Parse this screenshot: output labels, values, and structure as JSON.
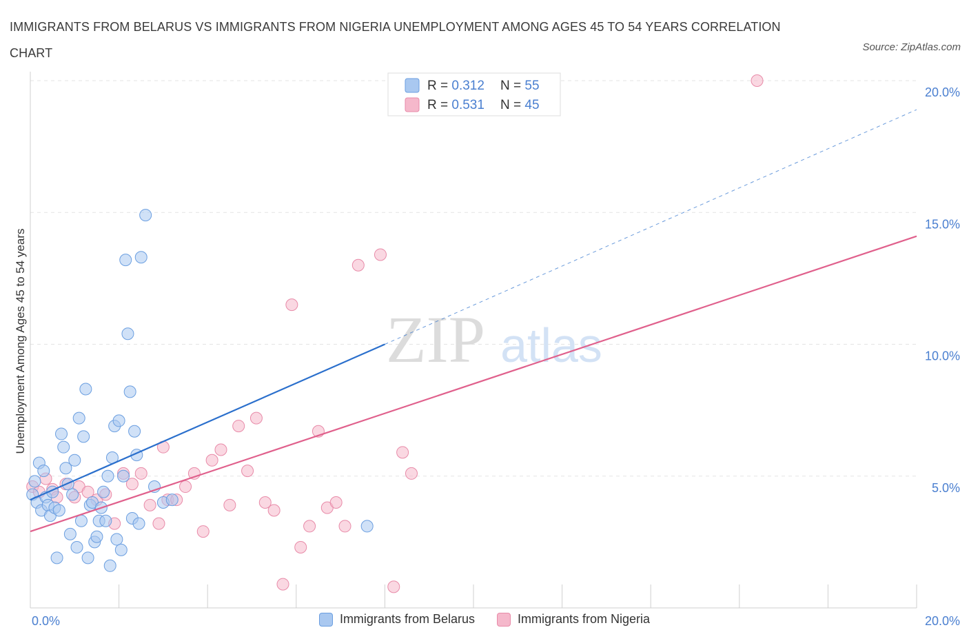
{
  "title": "IMMIGRANTS FROM BELARUS VS IMMIGRANTS FROM NIGERIA UNEMPLOYMENT AMONG AGES 45 TO 54 YEARS CORRELATION CHART",
  "source": "Source: ZipAtlas.com",
  "watermark": {
    "zip": "ZIP",
    "atlas": "atlas"
  },
  "colors": {
    "blue": "#a9c8f0",
    "blue_stroke": "#6a9ee0",
    "blue_line": "#2a6fcc",
    "pink": "#f5b8cb",
    "pink_stroke": "#e88aa8",
    "pink_line": "#e0608c",
    "axis_text": "#4a7fd0"
  },
  "legend_top": [
    {
      "r_label": "R = ",
      "r_value": "0.312",
      "n_label": "N = ",
      "n_value": "55"
    },
    {
      "r_label": "R = ",
      "r_value": "0.531",
      "n_label": "N = ",
      "n_value": "45"
    }
  ],
  "chart_data": {
    "type": "scatter",
    "title": "IMMIGRANTS FROM BELARUS VS IMMIGRANTS FROM NIGERIA UNEMPLOYMENT AMONG AGES 45 TO 54 YEARS CORRELATION CHART",
    "xlabel": "",
    "ylabel": "Unemployment Among Ages 45 to 54 years",
    "xlim": [
      0,
      20
    ],
    "ylim": [
      0,
      20
    ],
    "x_tick_labels": [
      "0.0%",
      "20.0%"
    ],
    "y_ticks": [
      {
        "value": 5,
        "label": "5.0%"
      },
      {
        "value": 10,
        "label": "10.0%"
      },
      {
        "value": 15,
        "label": "15.0%"
      },
      {
        "value": 20,
        "label": "20.0%"
      }
    ],
    "grid": true,
    "legend_position": "bottom",
    "series": [
      {
        "name": "Immigrants from Belarus",
        "color": "#a9c8f0",
        "R": 0.312,
        "N": 55,
        "trend": {
          "x0": 0,
          "y0": 4.1,
          "x1": 8.0,
          "y1": 10.0,
          "dash_x1": 20,
          "dash_y1": 18.9
        },
        "x": [
          0.05,
          0.1,
          0.15,
          0.2,
          0.25,
          0.3,
          0.35,
          0.4,
          0.45,
          0.5,
          0.55,
          0.6,
          0.65,
          0.7,
          0.75,
          0.8,
          0.85,
          0.9,
          0.95,
          1.0,
          1.05,
          1.1,
          1.15,
          1.2,
          1.25,
          1.3,
          1.35,
          1.4,
          1.45,
          1.5,
          1.55,
          1.6,
          1.65,
          1.7,
          1.75,
          1.8,
          1.85,
          1.9,
          1.95,
          2.0,
          2.05,
          2.1,
          2.15,
          2.2,
          2.25,
          2.3,
          2.35,
          2.4,
          2.45,
          2.5,
          2.6,
          2.8,
          3.0,
          3.2,
          7.6
        ],
        "y": [
          4.3,
          4.8,
          4.0,
          5.5,
          3.7,
          5.2,
          4.2,
          3.9,
          3.5,
          4.4,
          3.8,
          1.9,
          3.7,
          6.6,
          6.1,
          5.3,
          4.7,
          2.8,
          4.3,
          5.6,
          2.3,
          7.2,
          3.3,
          6.5,
          8.3,
          1.9,
          3.9,
          4.0,
          2.5,
          2.7,
          3.3,
          3.8,
          4.4,
          3.3,
          5.0,
          1.6,
          5.7,
          6.9,
          2.6,
          7.1,
          2.2,
          5.0,
          13.2,
          10.4,
          8.2,
          3.4,
          6.7,
          5.8,
          3.2,
          13.3,
          14.9,
          4.6,
          4.0,
          4.1,
          3.1
        ]
      },
      {
        "name": "Immigrants from Nigeria",
        "color": "#f5b8cb",
        "R": 0.531,
        "N": 45,
        "trend": {
          "x0": 0,
          "y0": 2.9,
          "x1": 20,
          "y1": 14.1
        },
        "x": [
          0.05,
          0.2,
          0.35,
          0.5,
          0.6,
          0.8,
          1.0,
          1.1,
          1.3,
          1.5,
          1.7,
          1.9,
          2.1,
          2.3,
          2.5,
          2.7,
          2.9,
          3.0,
          3.1,
          3.3,
          3.5,
          3.7,
          3.9,
          4.1,
          4.3,
          4.5,
          4.7,
          4.9,
          5.1,
          5.3,
          5.5,
          5.7,
          5.9,
          6.1,
          6.3,
          6.5,
          6.7,
          6.9,
          7.1,
          7.4,
          7.9,
          8.2,
          8.4,
          8.6,
          16.4
        ],
        "y": [
          4.6,
          4.4,
          4.9,
          4.5,
          4.2,
          4.7,
          4.2,
          4.6,
          4.4,
          4.1,
          4.3,
          3.2,
          5.1,
          4.7,
          5.1,
          3.9,
          3.2,
          6.1,
          4.1,
          4.1,
          4.6,
          5.1,
          2.9,
          5.6,
          6.0,
          3.9,
          6.9,
          5.2,
          7.2,
          4.0,
          3.7,
          0.9,
          11.5,
          2.3,
          3.1,
          6.7,
          3.8,
          4.0,
          3.1,
          13.0,
          13.4,
          0.8,
          5.9,
          5.1,
          20.0
        ]
      }
    ]
  },
  "legend_bottom": [
    {
      "label": "Immigrants from Belarus"
    },
    {
      "label": "Immigrants from Nigeria"
    }
  ]
}
